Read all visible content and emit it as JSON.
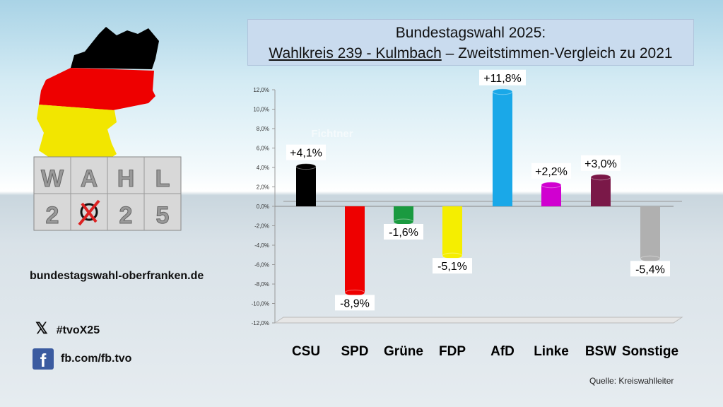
{
  "header": {
    "line1": "Bundestagswahl 2025:",
    "wahlkreis": "Wahlkreis 239 - Kulmbach",
    "line2_rest": " – Zweitstimmen-Vergleich zu 2021"
  },
  "logo": {
    "text": "WAHL 2025"
  },
  "sidebar": {
    "website": "bundestagswahl-oberfranken.de",
    "x_handle": "#tvoX25",
    "facebook": "fb.com/fb.tvo",
    "icons": [
      "x-logo-icon",
      "facebook-icon"
    ]
  },
  "watermark": "Fichtner",
  "source": "Quelle: Kreiswahlleiter",
  "chart_data": {
    "type": "bar",
    "title": "",
    "categories": [
      "CSU",
      "SPD",
      "Grüne",
      "FDP",
      "AfD",
      "Linke",
      "BSW",
      "Sonstige"
    ],
    "values": [
      4.1,
      -8.9,
      -1.6,
      -5.1,
      11.8,
      2.2,
      3.0,
      -5.4
    ],
    "data_labels": [
      "+4,1%",
      "-8,9%",
      "-1,6%",
      "-5,1%",
      "+11,8%",
      "+2,2%",
      "+3,0%",
      "-5,4%"
    ],
    "colors": [
      "#000000",
      "#ee0000",
      "#1a9a40",
      "#f5ee00",
      "#1aa8e8",
      "#d000d0",
      "#7a1848",
      "#b0b0b0"
    ],
    "ylim": [
      -12,
      12
    ],
    "yticks": [
      "12,0%",
      "10,0%",
      "8,0%",
      "6,0%",
      "4,0%",
      "2,0%",
      "0,0%",
      "-2,0%",
      "-4,0%",
      "-6,0%",
      "-8,0%",
      "-10,0%",
      "-12,0%"
    ],
    "grid": false,
    "legend": "none"
  }
}
